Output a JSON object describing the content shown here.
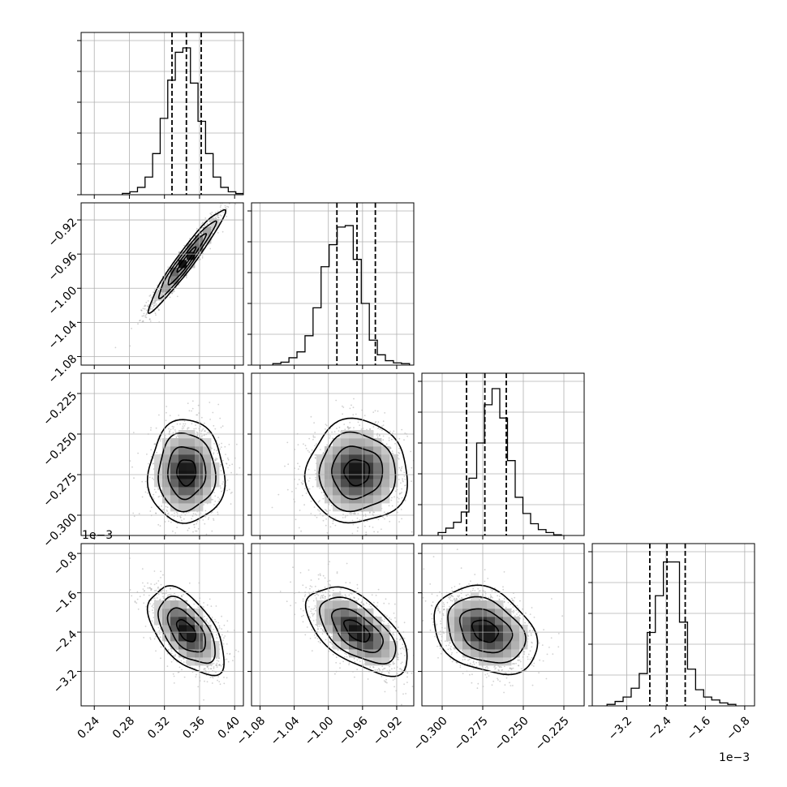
{
  "chart_data": {
    "type": "corner",
    "grid": true,
    "exponent_label": "1e−3",
    "params": [
      {
        "range": [
          0.225,
          0.41
        ],
        "ticks": [
          0.24,
          0.28,
          0.32,
          0.36,
          0.4
        ],
        "tick_labels": [
          "0.24",
          "0.28",
          "0.32",
          "0.36",
          "0.40"
        ],
        "quantiles": [
          0.3286,
          0.345,
          0.3619
        ],
        "mean": 0.345,
        "sd": 0.016,
        "hist_bins": [
          0.009,
          0.02,
          0.05,
          0.12,
          0.28,
          0.52,
          0.78,
          0.97,
          1.0,
          0.76,
          0.5,
          0.28,
          0.12,
          0.05,
          0.02,
          0.008
        ],
        "hist_range": [
          0.272,
          0.41
        ]
      },
      {
        "range": [
          -1.09,
          -0.9
        ],
        "ticks": [
          -1.08,
          -1.04,
          -1.0,
          -0.96,
          -0.92
        ],
        "tick_labels": [
          "−1.08",
          "−1.04",
          "−1.00",
          "−0.96",
          "−0.92"
        ],
        "quantiles": [
          -0.99,
          -0.9665,
          -0.945
        ],
        "mean": -0.9665,
        "sd": 0.022,
        "hist_bins": [
          0.01,
          0.02,
          0.05,
          0.09,
          0.2,
          0.39,
          0.67,
          0.82,
          0.94,
          0.95,
          0.72,
          0.42,
          0.17,
          0.07,
          0.03,
          0.015,
          0.01
        ],
        "hist_range": [
          -1.065,
          -0.905
        ]
      },
      {
        "range": [
          -0.3125,
          -0.2125
        ],
        "ticks": [
          -0.3,
          -0.275,
          -0.25,
          -0.225
        ],
        "tick_labels": [
          "−0.300",
          "−0.275",
          "−0.250",
          "−0.225"
        ],
        "quantiles": [
          -0.285,
          -0.2737,
          -0.2605
        ],
        "mean": -0.2735,
        "sd": 0.0118,
        "hist_bins": [
          0.02,
          0.05,
          0.09,
          0.16,
          0.39,
          0.63,
          0.89,
          1.0,
          0.8,
          0.51,
          0.26,
          0.15,
          0.08,
          0.04,
          0.02,
          0.005
        ],
        "hist_range": [
          -0.3025,
          -0.2265
        ]
      },
      {
        "range": [
          -3.9,
          -0.6
        ],
        "ticks": [
          -3.2,
          -2.4,
          -1.6,
          -0.8
        ],
        "tick_labels": [
          "−3.2",
          "−2.4",
          "−1.6",
          "−0.8"
        ],
        "quantiles": [
          -2.73,
          -2.38,
          -2.01
        ],
        "mean": -2.375,
        "sd": 0.33,
        "hist_bins": [
          0.01,
          0.03,
          0.06,
          0.12,
          0.22,
          0.5,
          0.75,
          0.98,
          0.98,
          0.57,
          0.25,
          0.11,
          0.06,
          0.04,
          0.02,
          0.01
        ],
        "hist_range": [
          -3.6,
          -0.98
        ]
      }
    ],
    "correlations": {
      "1-0": 0.96,
      "2-0": 0.0,
      "2-1": 0.0,
      "3-0": -0.55,
      "3-1": -0.58,
      "3-2": -0.28
    }
  }
}
